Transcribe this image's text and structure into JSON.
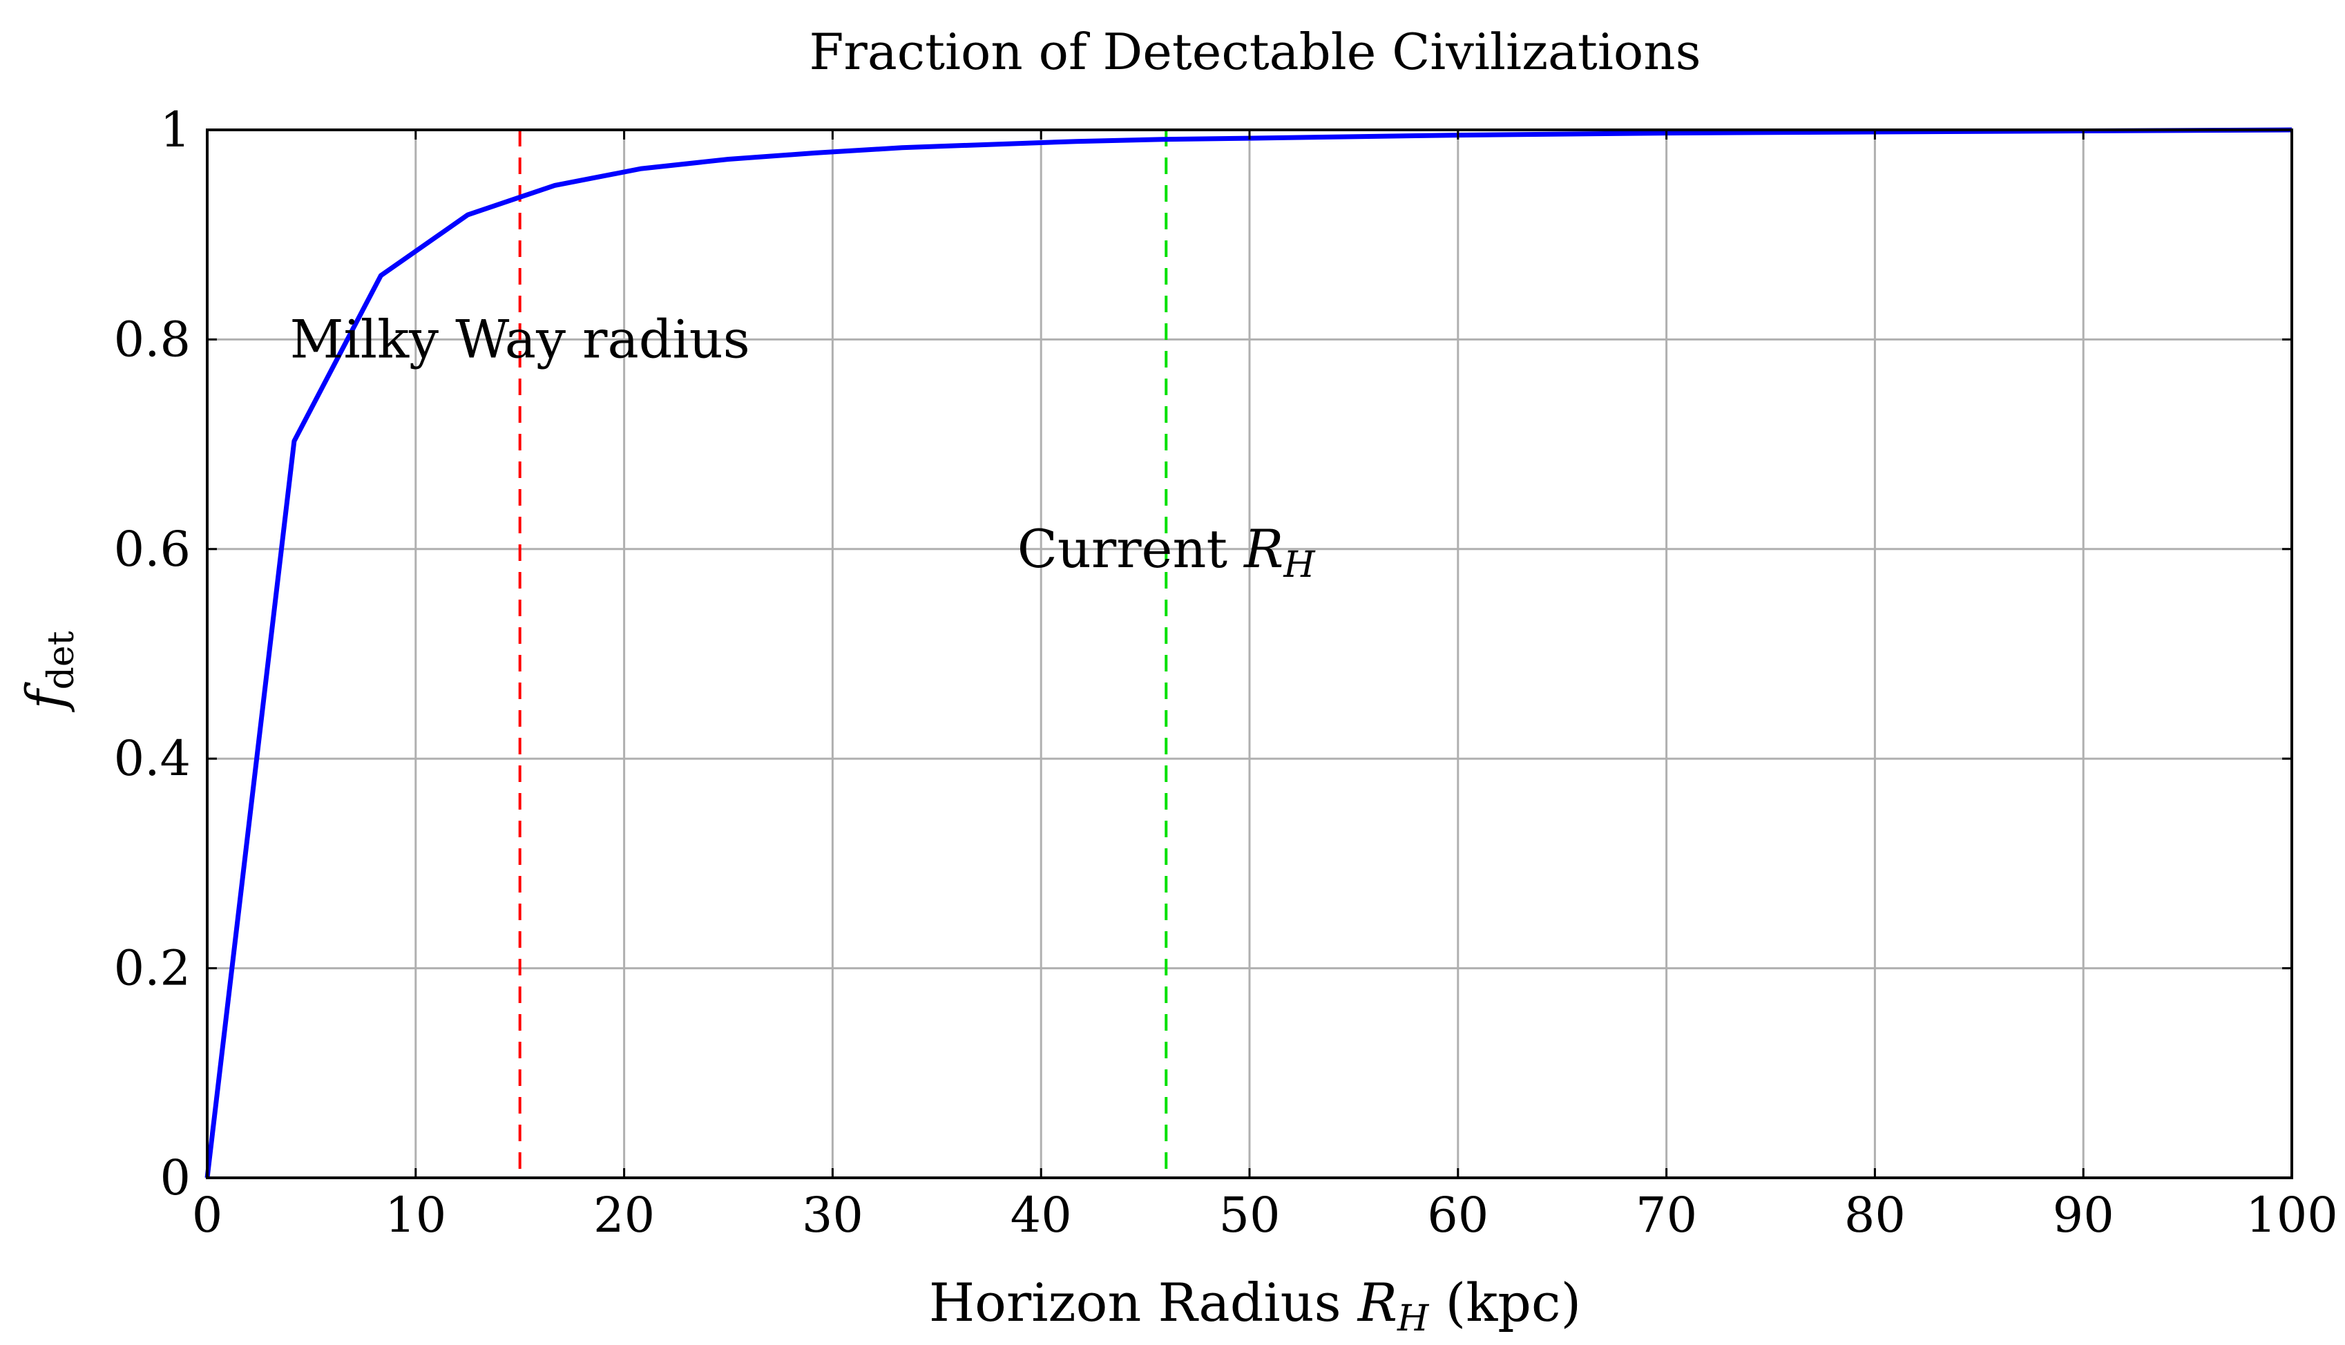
{
  "chart_data": {
    "type": "line",
    "title": "Fraction of Detectable Civilizations",
    "xlabel_prefix": "Horizon Radius ",
    "xlabel_var": "R",
    "xlabel_sub": "H",
    "xlabel_suffix": " (kpc)",
    "ylabel_var": "f",
    "ylabel_sub": "det",
    "xlim": [
      0,
      100
    ],
    "ylim": [
      0,
      1
    ],
    "xticks": [
      0,
      10,
      20,
      30,
      40,
      50,
      60,
      70,
      80,
      90,
      100
    ],
    "yticks": [
      0,
      0.2,
      0.4,
      0.6,
      0.8,
      1
    ],
    "grid": true,
    "series": [
      {
        "color": "#0000ff",
        "x": [
          0,
          4.17,
          8.33,
          12.5,
          16.67,
          20.83,
          25,
          29.17,
          33.33,
          37.5,
          41.67,
          45.83,
          50,
          60,
          70,
          80,
          90,
          100
        ],
        "y": [
          0,
          0.703,
          0.861,
          0.919,
          0.947,
          0.963,
          0.972,
          0.978,
          0.983,
          0.986,
          0.989,
          0.991,
          0.992,
          0.995,
          0.997,
          0.998,
          0.999,
          1.0
        ]
      }
    ],
    "reference_lines": [
      {
        "x": 15,
        "color": "#ff0000",
        "label_text": "Milky Way radius",
        "label_y": 0.8
      },
      {
        "x": 46,
        "color": "#00e000",
        "label_text": "Current ",
        "label_var": "R",
        "label_sub": "H",
        "label_y": 0.6
      }
    ]
  }
}
